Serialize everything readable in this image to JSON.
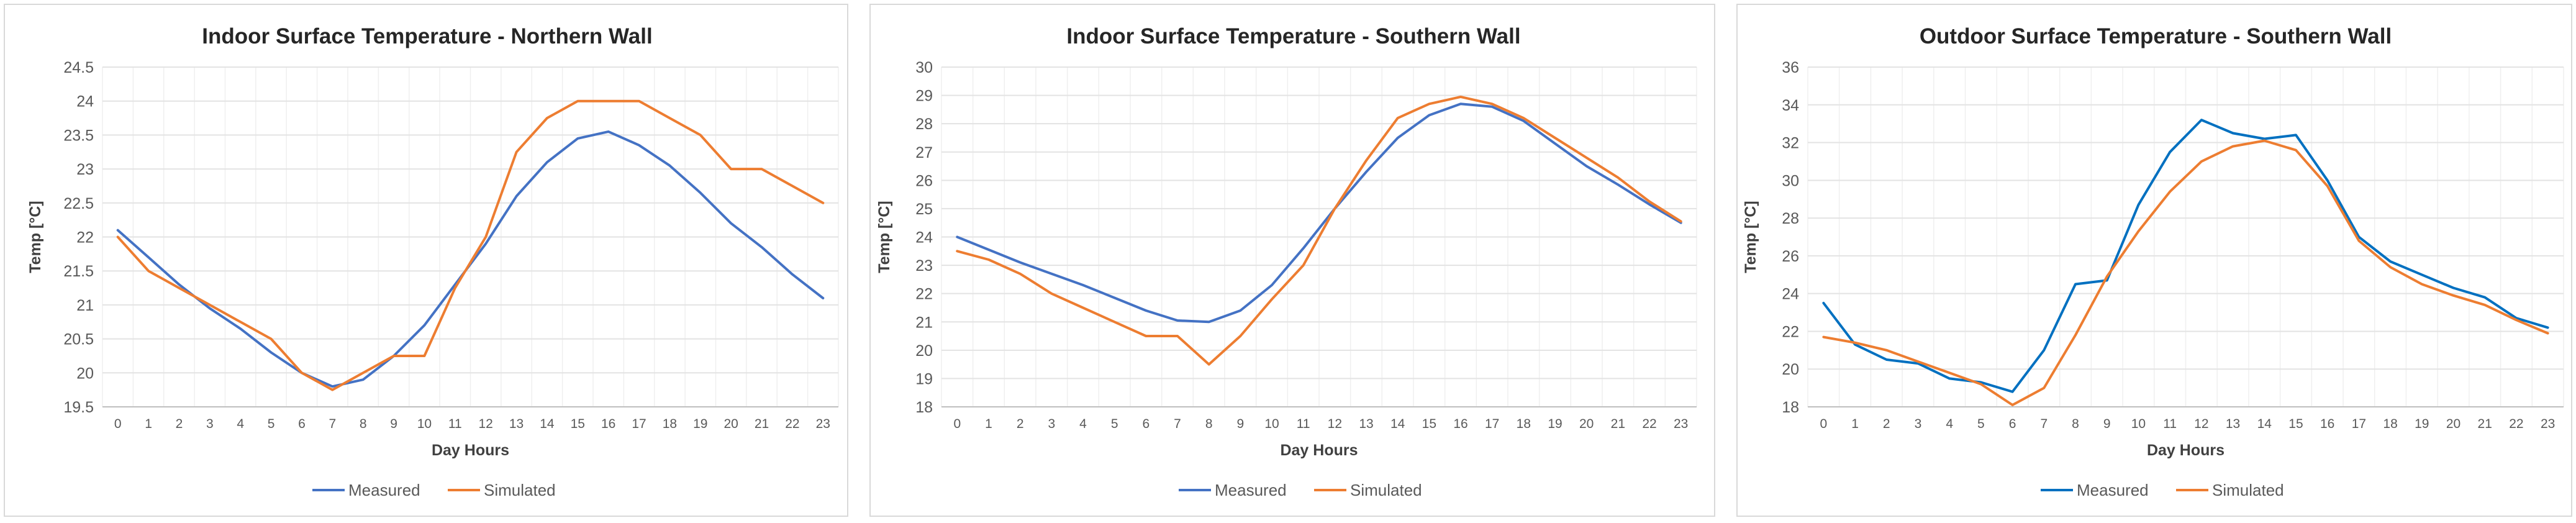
{
  "colors": {
    "measured_north": "#4472C4",
    "measured_south_in": "#4472C4",
    "measured_south_out": "#0070C0",
    "simulated": "#ED7D31"
  },
  "chart_data": [
    {
      "type": "line",
      "title": "Indoor Surface Temperature  - Northern  Wall",
      "xlabel": "Day Hours",
      "ylabel": "Temp [°C]",
      "ylim": [
        19.5,
        24.5
      ],
      "yticks": [
        "19.5",
        "20",
        "20.5",
        "21",
        "21.5",
        "22",
        "22.5",
        "23",
        "23.5",
        "24",
        "24.5"
      ],
      "x": [
        "0",
        "1",
        "2",
        "3",
        "4",
        "5",
        "6",
        "7",
        "8",
        "9",
        "10",
        "11",
        "12",
        "13",
        "14",
        "15",
        "16",
        "17",
        "18",
        "19",
        "20",
        "21",
        "22",
        "23"
      ],
      "series": [
        {
          "name": "Measured",
          "color": "#4472C4",
          "values": [
            22.1,
            21.7,
            21.3,
            20.95,
            20.65,
            20.3,
            20.0,
            19.8,
            19.9,
            20.25,
            20.7,
            21.3,
            21.9,
            22.6,
            23.1,
            23.45,
            23.55,
            23.35,
            23.05,
            22.65,
            22.2,
            21.85,
            21.45,
            21.1
          ]
        },
        {
          "name": "Simulated",
          "color": "#ED7D31",
          "values": [
            22.0,
            21.5,
            21.25,
            21.0,
            20.75,
            20.5,
            20.0,
            19.75,
            20.0,
            20.25,
            20.25,
            21.25,
            22.0,
            23.25,
            23.75,
            24.0,
            24.0,
            24.0,
            23.75,
            23.5,
            23.0,
            23.0,
            22.75,
            22.5
          ]
        }
      ],
      "legend": [
        "Measured",
        "Simulated"
      ]
    },
    {
      "type": "line",
      "title": "Indoor Surface Temperature  - Southern  Wall",
      "xlabel": "Day Hours",
      "ylabel": "Temp [°C]",
      "ylim": [
        18,
        30
      ],
      "yticks": [
        "18",
        "19",
        "20",
        "21",
        "22",
        "23",
        "24",
        "25",
        "26",
        "27",
        "28",
        "29",
        "30"
      ],
      "x": [
        "0",
        "1",
        "2",
        "3",
        "4",
        "5",
        "6",
        "7",
        "8",
        "9",
        "10",
        "11",
        "12",
        "13",
        "14",
        "15",
        "16",
        "17",
        "18",
        "19",
        "20",
        "21",
        "22",
        "23"
      ],
      "series": [
        {
          "name": "Measured",
          "color": "#4472C4",
          "values": [
            24.0,
            23.55,
            23.1,
            22.7,
            22.3,
            21.85,
            21.4,
            21.05,
            21.0,
            21.4,
            22.3,
            23.6,
            25.0,
            26.3,
            27.5,
            28.3,
            28.7,
            28.6,
            28.1,
            27.3,
            26.5,
            25.85,
            25.15,
            24.5
          ]
        },
        {
          "name": "Simulated",
          "color": "#ED7D31",
          "values": [
            23.5,
            23.2,
            22.7,
            22.0,
            21.5,
            21.0,
            20.5,
            20.5,
            19.5,
            20.5,
            21.8,
            23.0,
            25.0,
            26.7,
            28.2,
            28.7,
            28.95,
            28.7,
            28.2,
            27.5,
            26.8,
            26.1,
            25.25,
            24.55
          ]
        }
      ],
      "legend": [
        "Measured",
        "Simulated"
      ]
    },
    {
      "type": "line",
      "title": "Outdoor Surface Temperature  - Southern  Wall",
      "xlabel": "Day Hours",
      "ylabel": "Temp [°C]",
      "ylim": [
        18,
        36
      ],
      "yticks": [
        "18",
        "20",
        "22",
        "24",
        "26",
        "28",
        "30",
        "32",
        "34",
        "36"
      ],
      "x": [
        "0",
        "1",
        "2",
        "3",
        "4",
        "5",
        "6",
        "7",
        "8",
        "9",
        "10",
        "11",
        "12",
        "13",
        "14",
        "15",
        "16",
        "17",
        "18",
        "19",
        "20",
        "21",
        "22",
        "23"
      ],
      "series": [
        {
          "name": "Measured",
          "color": "#0070C0",
          "values": [
            23.5,
            21.3,
            20.5,
            20.3,
            19.5,
            19.3,
            18.8,
            21.0,
            24.5,
            24.7,
            28.7,
            31.5,
            33.2,
            32.5,
            32.2,
            32.4,
            30.0,
            27.0,
            25.7,
            25.0,
            24.3,
            23.8,
            22.7,
            22.2
          ]
        },
        {
          "name": "Simulated",
          "color": "#ED7D31",
          "values": [
            21.7,
            21.4,
            21.0,
            20.4,
            19.8,
            19.2,
            18.1,
            19.0,
            21.8,
            24.9,
            27.3,
            29.4,
            31.0,
            31.8,
            32.1,
            31.6,
            29.7,
            26.8,
            25.4,
            24.5,
            23.9,
            23.4,
            22.6,
            21.9
          ]
        }
      ],
      "legend": [
        "Measured",
        "Simulated"
      ]
    }
  ]
}
